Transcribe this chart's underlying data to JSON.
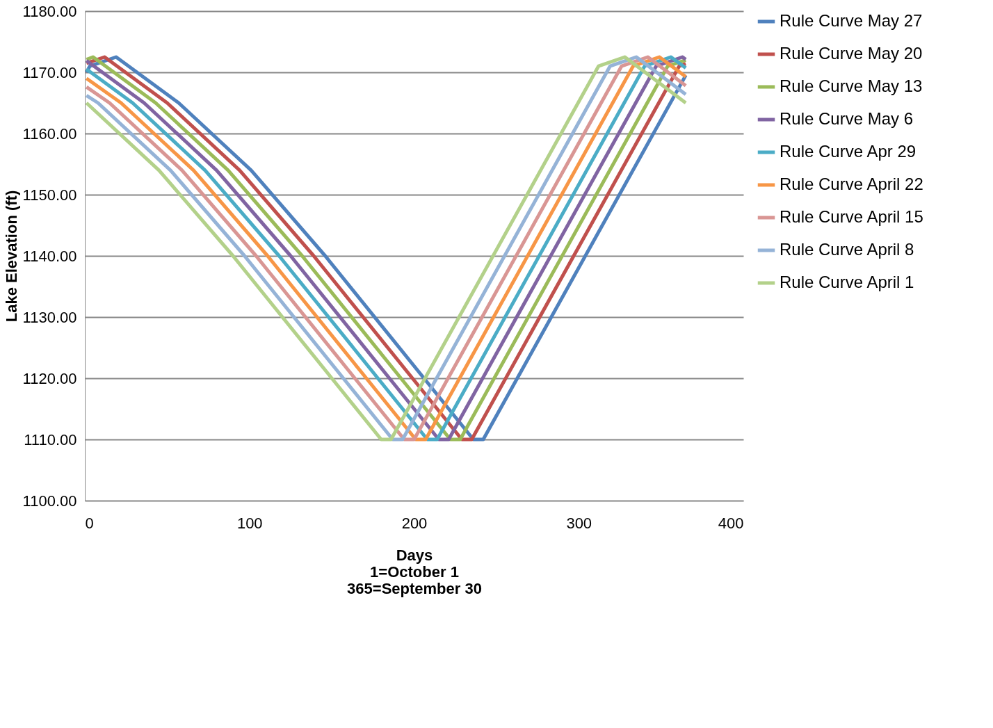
{
  "chart_data": {
    "type": "line",
    "xlabel": "Days\n1=October 1\n365=September 30",
    "ylabel": "Lake Elevation  (ft)",
    "xlim": [
      0,
      400
    ],
    "xticks": [
      0,
      100,
      200,
      300,
      400
    ],
    "ylim": [
      1100,
      1180
    ],
    "yticks": [
      {
        "value": 1100,
        "label": "1100.00"
      },
      {
        "value": 1110,
        "label": "1110.00"
      },
      {
        "value": 1120,
        "label": "1120.00"
      },
      {
        "value": 1130,
        "label": "1130.00"
      },
      {
        "value": 1140,
        "label": "1140.00"
      },
      {
        "value": 1150,
        "label": "1150.00"
      },
      {
        "value": 1160,
        "label": "1160.00"
      },
      {
        "value": 1170,
        "label": "1170.00"
      },
      {
        "value": 1180,
        "label": "1180.00"
      }
    ],
    "grid": "y",
    "legend": "right",
    "line_style": "solid",
    "series": [
      {
        "name": "Rule Curve May 27",
        "color": "#4f81bd",
        "x": [
          1,
          3,
          19,
          57,
          101,
          146,
          206,
          236,
          242,
          365
        ],
        "values": [
          1170.0,
          1171,
          1172.5,
          1165,
          1154,
          1140,
          1120,
          1110,
          1110,
          1169.5
        ]
      },
      {
        "name": "Rule Curve May 20",
        "color": "#c0504d",
        "x": [
          1,
          12,
          50,
          94,
          139,
          199,
          229,
          235,
          361,
          365
        ],
        "values": [
          1171.5,
          1172.5,
          1165,
          1154,
          1140,
          1120,
          1110,
          1110,
          1171,
          1171.4
        ]
      },
      {
        "name": "Rule Curve May 13",
        "color": "#9bbb59",
        "x": [
          1,
          5,
          43,
          87,
          132,
          192,
          222,
          228,
          354,
          365
        ],
        "values": [
          1172.1,
          1172.5,
          1165,
          1154,
          1140,
          1120,
          1110,
          1110,
          1171,
          1172.0
        ]
      },
      {
        "name": "Rule Curve May 6",
        "color": "#8064a2",
        "x": [
          1,
          36,
          80,
          125,
          185,
          215,
          221,
          347,
          363,
          365
        ],
        "values": [
          1171.9,
          1165,
          1154,
          1140,
          1120,
          1110,
          1110,
          1171,
          1172.5,
          1172.1
        ]
      },
      {
        "name": "Rule Curve Apr 29",
        "color": "#4bacc6",
        "x": [
          1,
          29,
          73,
          118,
          178,
          208,
          214,
          340,
          356,
          365
        ],
        "values": [
          1170.5,
          1165,
          1154,
          1140,
          1120,
          1110,
          1110,
          1171,
          1172.5,
          1170.7
        ]
      },
      {
        "name": "Rule Curve April 22",
        "color": "#f79646",
        "x": [
          1,
          22,
          66,
          111,
          171,
          201,
          207,
          333,
          349,
          365
        ],
        "values": [
          1169.0,
          1165,
          1154,
          1140,
          1120,
          1110,
          1110,
          1171,
          1172.5,
          1169.3
        ]
      },
      {
        "name": "Rule Curve April 15",
        "color": "#d99694",
        "x": [
          1,
          15,
          59,
          104,
          164,
          194,
          200,
          326,
          342,
          365
        ],
        "values": [
          1167.6,
          1165,
          1154,
          1140,
          1120,
          1110,
          1110,
          1171,
          1172.5,
          1167.8
        ]
      },
      {
        "name": "Rule Curve April 8",
        "color": "#95b3d7",
        "x": [
          1,
          8,
          52,
          97,
          157,
          187,
          193,
          319,
          335,
          365
        ],
        "values": [
          1166.2,
          1165,
          1154,
          1140,
          1120,
          1110,
          1110,
          1171,
          1172.5,
          1166.4
        ]
      },
      {
        "name": "Rule Curve April 1",
        "color": "#b3d18a",
        "x": [
          1,
          45,
          90,
          150,
          180,
          186,
          312,
          328,
          365
        ],
        "values": [
          1165,
          1154,
          1140,
          1120,
          1110,
          1110,
          1171,
          1172.5,
          1165
        ]
      }
    ]
  }
}
